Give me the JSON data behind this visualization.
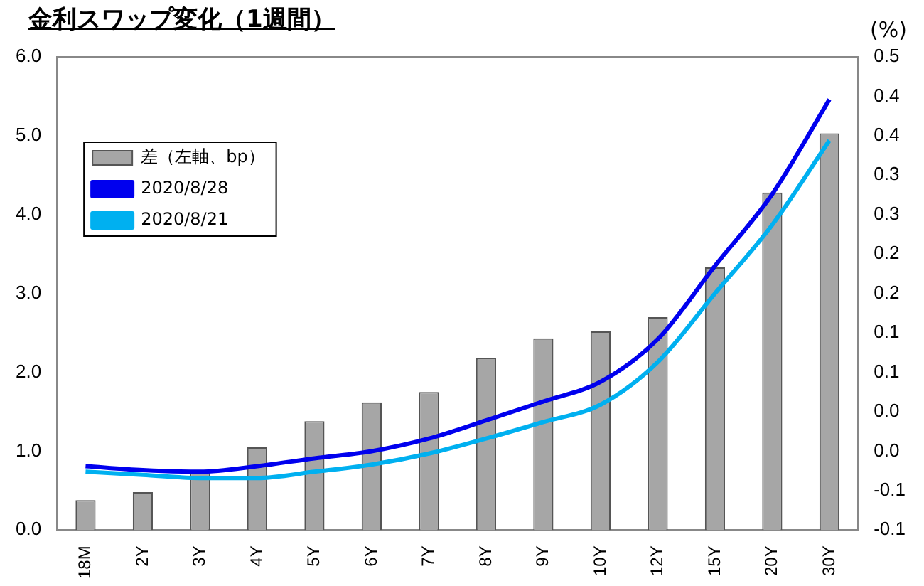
{
  "chart_data": {
    "type": "bar",
    "title": "金利スワップ変化（1週間）",
    "y2label": "(%)",
    "categories": [
      "18M",
      "2Y",
      "3Y",
      "4Y",
      "5Y",
      "6Y",
      "7Y",
      "8Y",
      "9Y",
      "10Y",
      "12Y",
      "15Y",
      "20Y",
      "30Y"
    ],
    "series": [
      {
        "name": "差（左軸、bp）",
        "color": "#a6a6a6",
        "values": [
          0.38,
          0.48,
          0.75,
          1.05,
          1.38,
          1.62,
          1.75,
          2.18,
          2.43,
          2.52,
          2.7,
          3.33,
          4.28,
          5.03
        ]
      },
      {
        "name": "2020/8/28",
        "type": "line",
        "axis": "y2",
        "color": "#0000ee",
        "values": [
          -0.019,
          -0.024,
          -0.026,
          -0.019,
          -0.009,
          0.0,
          0.016,
          0.039,
          0.063,
          0.088,
          0.142,
          0.235,
          0.326,
          0.446
        ]
      },
      {
        "name": "2020/8/21",
        "type": "line",
        "axis": "y2",
        "color": "#00b0f0",
        "values": [
          -0.026,
          -0.03,
          -0.034,
          -0.034,
          -0.026,
          -0.017,
          -0.003,
          0.016,
          0.037,
          0.059,
          0.113,
          0.2,
          0.287,
          0.394
        ]
      }
    ],
    "ylim": [
      0,
      6
    ],
    "yticks": [
      {
        "value": 0,
        "label": "0.0"
      },
      {
        "value": 1,
        "label": "1.0"
      },
      {
        "value": 2,
        "label": "2.0"
      },
      {
        "value": 3,
        "label": "3.0"
      },
      {
        "value": 4,
        "label": "4.0"
      },
      {
        "value": 5,
        "label": "5.0"
      },
      {
        "value": 6,
        "label": "6.0"
      }
    ],
    "y2lim": [
      -0.1,
      0.5
    ],
    "y2ticks": [
      {
        "value": -0.1,
        "label": "-0.1"
      },
      {
        "value": -0.05,
        "label": "-0.1"
      },
      {
        "value": 0,
        "label": "0.0"
      },
      {
        "value": 0.05,
        "label": "0.0"
      },
      {
        "value": 0.1,
        "label": "0.1"
      },
      {
        "value": 0.15,
        "label": "0.1"
      },
      {
        "value": 0.2,
        "label": "0.2"
      },
      {
        "value": 0.25,
        "label": "0.2"
      },
      {
        "value": 0.3,
        "label": "0.3"
      },
      {
        "value": 0.35,
        "label": "0.3"
      },
      {
        "value": 0.4,
        "label": "0.4"
      },
      {
        "value": 0.45,
        "label": "0.4"
      },
      {
        "value": 0.5,
        "label": "0.5"
      }
    ],
    "grid": false,
    "legend": "top left",
    "marker": "none",
    "line_style": "solid"
  }
}
